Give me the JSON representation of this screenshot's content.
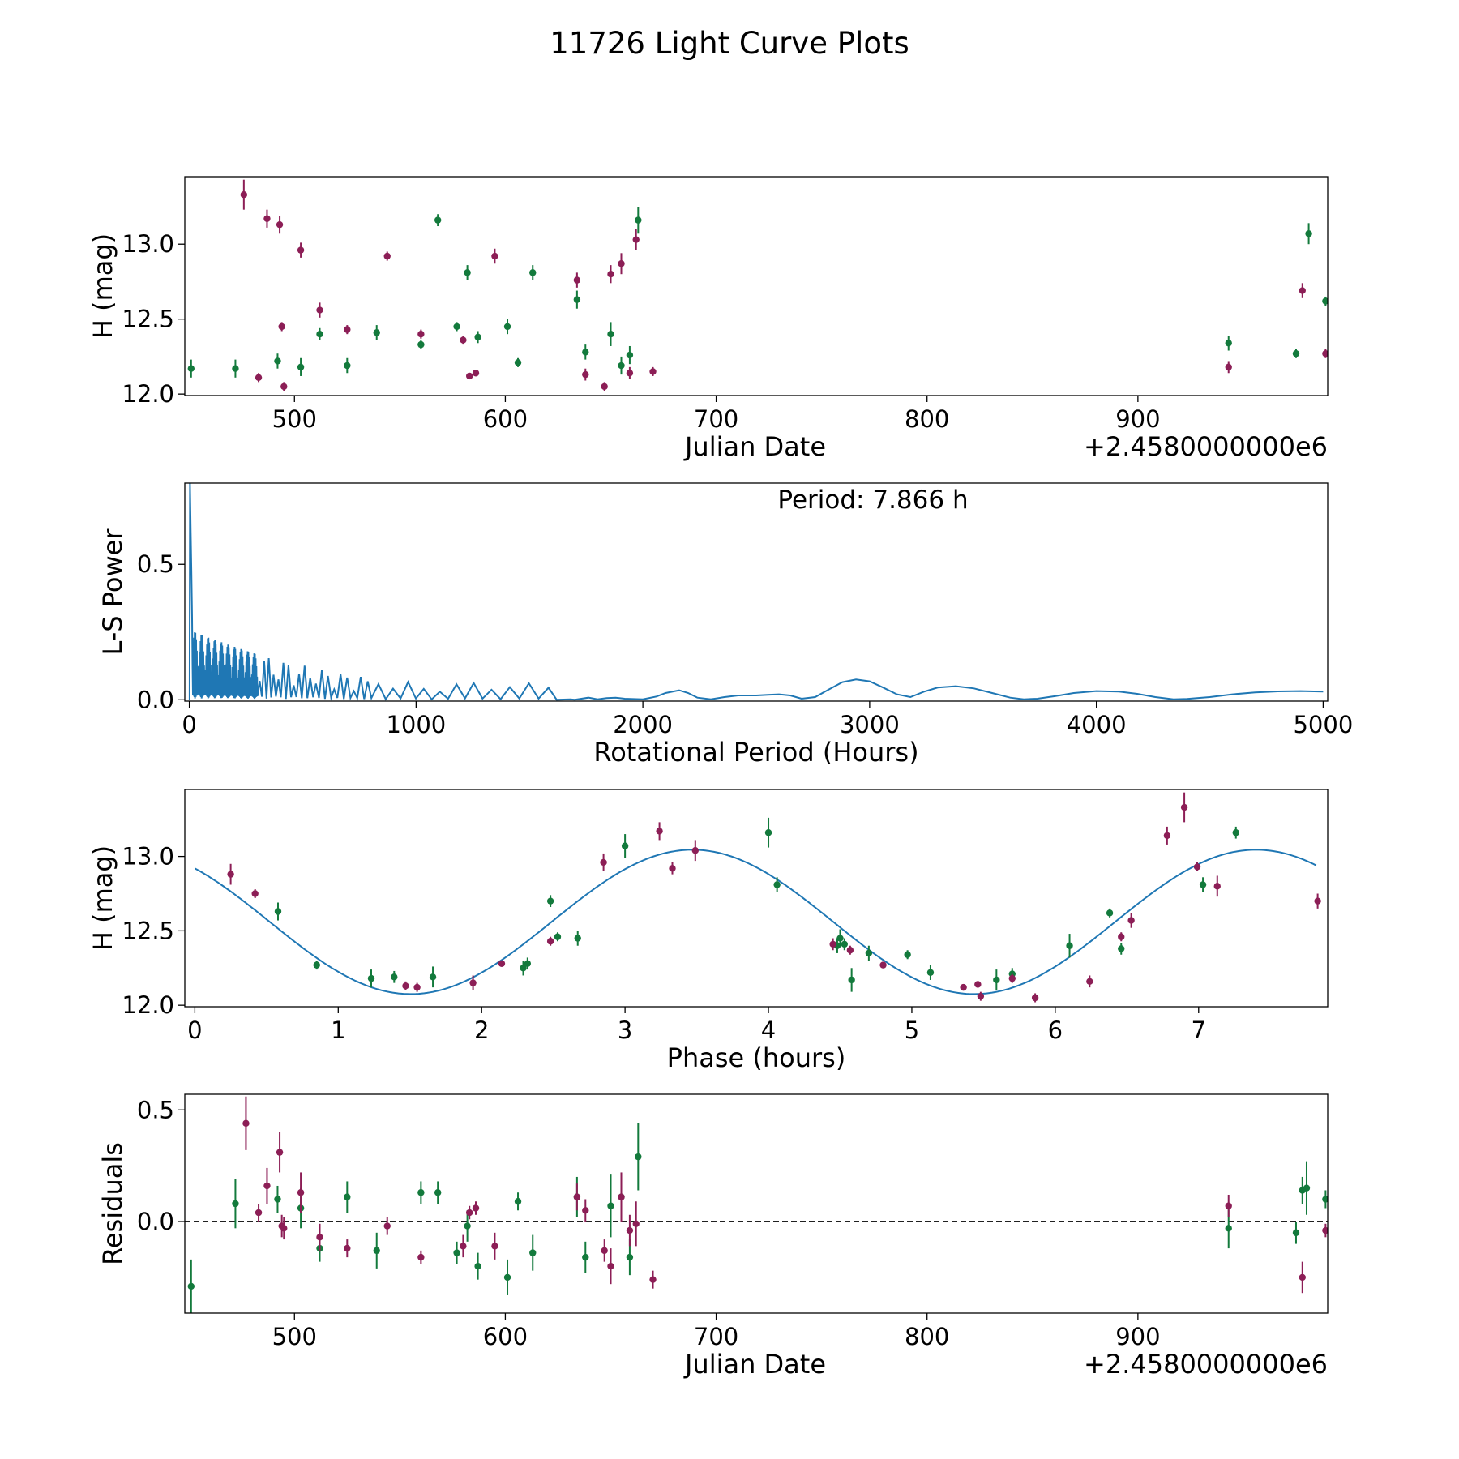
{
  "figure": {
    "title": "11726 Light Curve Plots"
  },
  "colors": {
    "green": "#137a3c",
    "magenta": "#8c1e56",
    "curve": "#1f77b4",
    "zero_line": "#000000"
  },
  "chart_data": [
    {
      "type": "scatter",
      "name": "lightcurve",
      "xlabel": "Julian Date",
      "ylabel": "H (mag)",
      "offset_text": "+2.4580000000e6",
      "xlim": [
        448,
        990
      ],
      "ylim": [
        11.99,
        13.45
      ],
      "xticks": [
        500,
        600,
        700,
        800,
        900
      ],
      "yticks": [
        12.0,
        12.5,
        13.0
      ],
      "ytick_labels": [
        "12.0",
        "12.5",
        "13.0"
      ],
      "grid": false,
      "series": [
        {
          "color": "green",
          "x": [
            451,
            472,
            492,
            503,
            512,
            525,
            539,
            560,
            568,
            577,
            582,
            587,
            601,
            606,
            613,
            634,
            638,
            650,
            655,
            659,
            663,
            943,
            975,
            981,
            989
          ],
          "y": [
            12.17,
            12.17,
            12.22,
            12.18,
            12.4,
            12.19,
            12.41,
            12.33,
            13.16,
            12.45,
            12.81,
            12.38,
            12.45,
            12.21,
            12.81,
            12.63,
            12.28,
            12.4,
            12.19,
            12.26,
            13.16,
            12.34,
            12.27,
            13.07,
            12.62
          ],
          "err": [
            0.06,
            0.06,
            0.05,
            0.06,
            0.04,
            0.05,
            0.05,
            0.03,
            0.04,
            0.03,
            0.05,
            0.04,
            0.05,
            0.03,
            0.05,
            0.06,
            0.05,
            0.08,
            0.06,
            0.06,
            0.09,
            0.05,
            0.03,
            0.07,
            0.03
          ]
        },
        {
          "color": "magenta",
          "x": [
            476,
            483,
            487,
            493,
            494,
            495,
            503,
            512,
            525,
            544,
            560,
            580,
            583,
            586,
            595,
            634,
            638,
            647,
            650,
            655,
            659,
            662,
            670,
            943,
            978,
            989
          ],
          "y": [
            13.33,
            12.11,
            13.17,
            13.13,
            12.45,
            12.05,
            12.96,
            12.56,
            12.43,
            12.92,
            12.4,
            12.36,
            12.12,
            12.14,
            12.92,
            12.76,
            12.13,
            12.05,
            12.8,
            12.87,
            12.14,
            13.03,
            12.15,
            12.18,
            12.69,
            12.27
          ],
          "err": [
            0.1,
            0.03,
            0.06,
            0.06,
            0.03,
            0.03,
            0.05,
            0.05,
            0.03,
            0.03,
            0.03,
            0.03,
            0.02,
            0.02,
            0.05,
            0.05,
            0.04,
            0.03,
            0.06,
            0.07,
            0.04,
            0.07,
            0.03,
            0.04,
            0.05,
            0.03
          ]
        }
      ]
    },
    {
      "type": "line",
      "name": "periodogram",
      "xlabel": "Rotational Period (Hours)",
      "ylabel": "L-S Power",
      "annotation": "Period: 7.866 h",
      "xlim": [
        -20,
        5020
      ],
      "ylim": [
        -0.005,
        0.8
      ],
      "xticks": [
        0,
        1000,
        2000,
        3000,
        4000,
        5000
      ],
      "yticks": [
        0.0,
        0.5
      ],
      "ytick_labels": [
        "0.0",
        "0.5"
      ],
      "grid": false,
      "x": [
        1620,
        1680,
        1700,
        1760,
        1800,
        1840,
        1880,
        1920,
        2000,
        2060,
        2100,
        2160,
        2200,
        2240,
        2300,
        2360,
        2420,
        2500,
        2550,
        2600,
        2650,
        2700,
        2760,
        2820,
        2880,
        2940,
        3000,
        3060,
        3120,
        3180,
        3240,
        3300,
        3380,
        3460,
        3540,
        3620,
        3680,
        3740,
        3820,
        3900,
        4000,
        4100,
        4180,
        4260,
        4340,
        4400,
        4500,
        4600,
        4700,
        4800,
        4900,
        5000
      ],
      "y": [
        0.0,
        0.002,
        0.0,
        0.008,
        0.002,
        0.006,
        0.008,
        0.004,
        0.002,
        0.012,
        0.025,
        0.035,
        0.025,
        0.008,
        0.002,
        0.01,
        0.016,
        0.016,
        0.018,
        0.02,
        0.016,
        0.004,
        0.01,
        0.038,
        0.065,
        0.075,
        0.068,
        0.045,
        0.02,
        0.01,
        0.03,
        0.045,
        0.05,
        0.042,
        0.025,
        0.008,
        0.002,
        0.004,
        0.014,
        0.025,
        0.032,
        0.03,
        0.022,
        0.01,
        0.002,
        0.003,
        0.01,
        0.02,
        0.027,
        0.031,
        0.032,
        0.03
      ]
    },
    {
      "type": "scatter",
      "name": "phased",
      "xlabel": "Phase (hours)",
      "ylabel": "H (mag)",
      "xlim": [
        -0.07,
        7.9
      ],
      "ylim": [
        11.99,
        13.45
      ],
      "xticks": [
        0,
        1,
        2,
        3,
        4,
        5,
        6,
        7
      ],
      "yticks": [
        12.0,
        12.5,
        13.0
      ],
      "ytick_labels": [
        "12.0",
        "12.5",
        "13.0"
      ],
      "grid": false,
      "model": {
        "mean": 12.56,
        "amp": 0.485,
        "period": 3.93,
        "peak_phase": 3.47
      },
      "series": [
        {
          "color": "green",
          "x": [
            0.58,
            0.85,
            1.23,
            1.39,
            1.66,
            2.29,
            2.32,
            2.48,
            2.53,
            2.67,
            3.0,
            4.0,
            4.06,
            4.48,
            4.5,
            4.53,
            4.58,
            4.7,
            4.97,
            5.13,
            5.59,
            5.7,
            6.1,
            6.38,
            6.46,
            7.03,
            7.26
          ],
          "y": [
            12.63,
            12.27,
            12.18,
            12.19,
            12.19,
            12.25,
            12.28,
            12.7,
            12.46,
            12.45,
            13.07,
            13.16,
            12.81,
            12.4,
            12.45,
            12.41,
            12.17,
            12.35,
            12.34,
            12.22,
            12.17,
            12.21,
            12.4,
            12.62,
            12.38,
            12.81,
            13.16
          ],
          "err": [
            0.06,
            0.03,
            0.06,
            0.04,
            0.07,
            0.05,
            0.04,
            0.04,
            0.03,
            0.05,
            0.08,
            0.1,
            0.05,
            0.05,
            0.06,
            0.04,
            0.08,
            0.05,
            0.03,
            0.05,
            0.07,
            0.04,
            0.08,
            0.03,
            0.04,
            0.05,
            0.04
          ]
        },
        {
          "color": "magenta",
          "x": [
            0.25,
            0.42,
            1.47,
            1.55,
            1.94,
            2.14,
            2.48,
            2.85,
            3.24,
            3.33,
            3.49,
            4.45,
            4.57,
            4.8,
            5.36,
            5.46,
            5.48,
            5.7,
            5.86,
            6.24,
            6.46,
            6.53,
            6.78,
            6.9,
            6.99,
            7.13,
            7.83
          ],
          "y": [
            12.88,
            12.75,
            12.13,
            12.12,
            12.15,
            12.28,
            12.43,
            12.96,
            13.17,
            12.92,
            13.04,
            12.41,
            12.37,
            12.27,
            12.12,
            12.14,
            12.06,
            12.18,
            12.05,
            12.16,
            12.46,
            12.57,
            13.14,
            13.33,
            12.93,
            12.8,
            12.7
          ],
          "err": [
            0.07,
            0.03,
            0.03,
            0.03,
            0.05,
            0.02,
            0.03,
            0.06,
            0.06,
            0.04,
            0.07,
            0.04,
            0.03,
            0.02,
            0.02,
            0.02,
            0.03,
            0.03,
            0.03,
            0.04,
            0.03,
            0.05,
            0.06,
            0.1,
            0.03,
            0.07,
            0.05
          ]
        }
      ]
    },
    {
      "type": "scatter",
      "name": "residuals",
      "xlabel": "Julian Date",
      "ylabel": "Residuals",
      "offset_text": "+2.4580000000e6",
      "xlim": [
        448,
        990
      ],
      "ylim": [
        -0.41,
        0.57
      ],
      "xticks": [
        500,
        600,
        700,
        800,
        900
      ],
      "yticks": [
        0.0,
        0.5
      ],
      "ytick_labels": [
        "0.0",
        "0.5"
      ],
      "zero_line": 0,
      "grid": false,
      "series": [
        {
          "color": "green",
          "x": [
            451,
            472,
            492,
            503,
            512,
            525,
            539,
            560,
            568,
            577,
            582,
            587,
            601,
            606,
            613,
            634,
            638,
            650,
            655,
            659,
            663,
            943,
            975,
            978,
            980,
            989
          ],
          "y": [
            -0.29,
            0.08,
            0.1,
            0.06,
            -0.12,
            0.11,
            -0.13,
            0.13,
            0.13,
            -0.14,
            -0.02,
            -0.2,
            -0.25,
            0.09,
            -0.14,
            0.11,
            -0.16,
            0.07,
            0.11,
            -0.16,
            0.29,
            -0.03,
            -0.05,
            0.14,
            0.15,
            0.1
          ],
          "err": [
            0.12,
            0.11,
            0.06,
            0.09,
            0.06,
            0.07,
            0.08,
            0.05,
            0.05,
            0.05,
            0.07,
            0.06,
            0.08,
            0.04,
            0.08,
            0.09,
            0.07,
            0.14,
            0.1,
            0.08,
            0.15,
            0.09,
            0.05,
            0.06,
            0.12,
            0.04
          ]
        },
        {
          "color": "magenta",
          "x": [
            477,
            483,
            487,
            493,
            494,
            495,
            503,
            512,
            525,
            544,
            560,
            580,
            583,
            586,
            595,
            634,
            638,
            647,
            650,
            655,
            659,
            662,
            670,
            943,
            978,
            989
          ],
          "y": [
            0.44,
            0.04,
            0.16,
            0.31,
            -0.02,
            -0.03,
            0.13,
            -0.07,
            -0.12,
            -0.02,
            -0.16,
            -0.11,
            0.04,
            0.06,
            -0.11,
            0.11,
            0.05,
            -0.13,
            -0.2,
            0.11,
            -0.04,
            -0.01,
            -0.26,
            0.07,
            -0.25,
            -0.04
          ],
          "err": [
            0.12,
            0.04,
            0.08,
            0.09,
            0.05,
            0.05,
            0.09,
            0.06,
            0.04,
            0.04,
            0.03,
            0.05,
            0.03,
            0.03,
            0.06,
            0.06,
            0.05,
            0.05,
            0.08,
            0.11,
            0.07,
            0.1,
            0.04,
            0.05,
            0.07,
            0.03
          ]
        }
      ]
    }
  ]
}
